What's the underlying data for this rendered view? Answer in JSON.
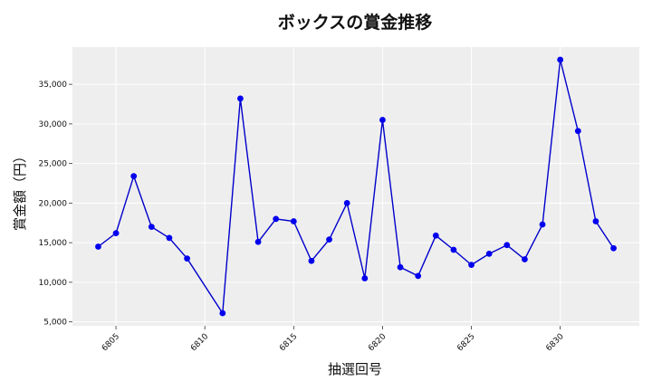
{
  "chart_data": {
    "type": "line",
    "title": "ボックスの賞金推移",
    "xlabel": "抽選回号",
    "ylabel": "賞金額（円）",
    "x": [
      6804,
      6805,
      6806,
      6807,
      6808,
      6809,
      6811,
      6812,
      6813,
      6814,
      6815,
      6816,
      6817,
      6818,
      6819,
      6820,
      6821,
      6822,
      6823,
      6824,
      6825,
      6826,
      6827,
      6828,
      6829,
      6830,
      6831,
      6832,
      6833
    ],
    "series": [
      {
        "values": [
          14500,
          16200,
          23400,
          17000,
          15600,
          13000,
          6100,
          33200,
          15100,
          18000,
          17700,
          12700,
          15400,
          20000,
          10500,
          30500,
          11900,
          10800,
          15900,
          14100,
          12200,
          13600,
          14700,
          12900,
          17300,
          38100,
          29100,
          17700,
          14300
        ]
      }
    ],
    "xticks": [
      6805,
      6810,
      6815,
      6820,
      6825,
      6830
    ],
    "yticks": [
      5000,
      10000,
      15000,
      20000,
      25000,
      30000,
      35000
    ],
    "yticklabels": [
      "5,000",
      "10,000",
      "15,000",
      "20,000",
      "25,000",
      "30,000",
      "35,000"
    ],
    "xlim": [
      6802.55,
      6834.45
    ],
    "ylim": [
      4500,
      39700
    ],
    "grid": true,
    "colors": {
      "line": "#0000cc",
      "marker": "#0000ee",
      "plot_bg": "#eeeeee",
      "grid": "#ffffff"
    }
  }
}
